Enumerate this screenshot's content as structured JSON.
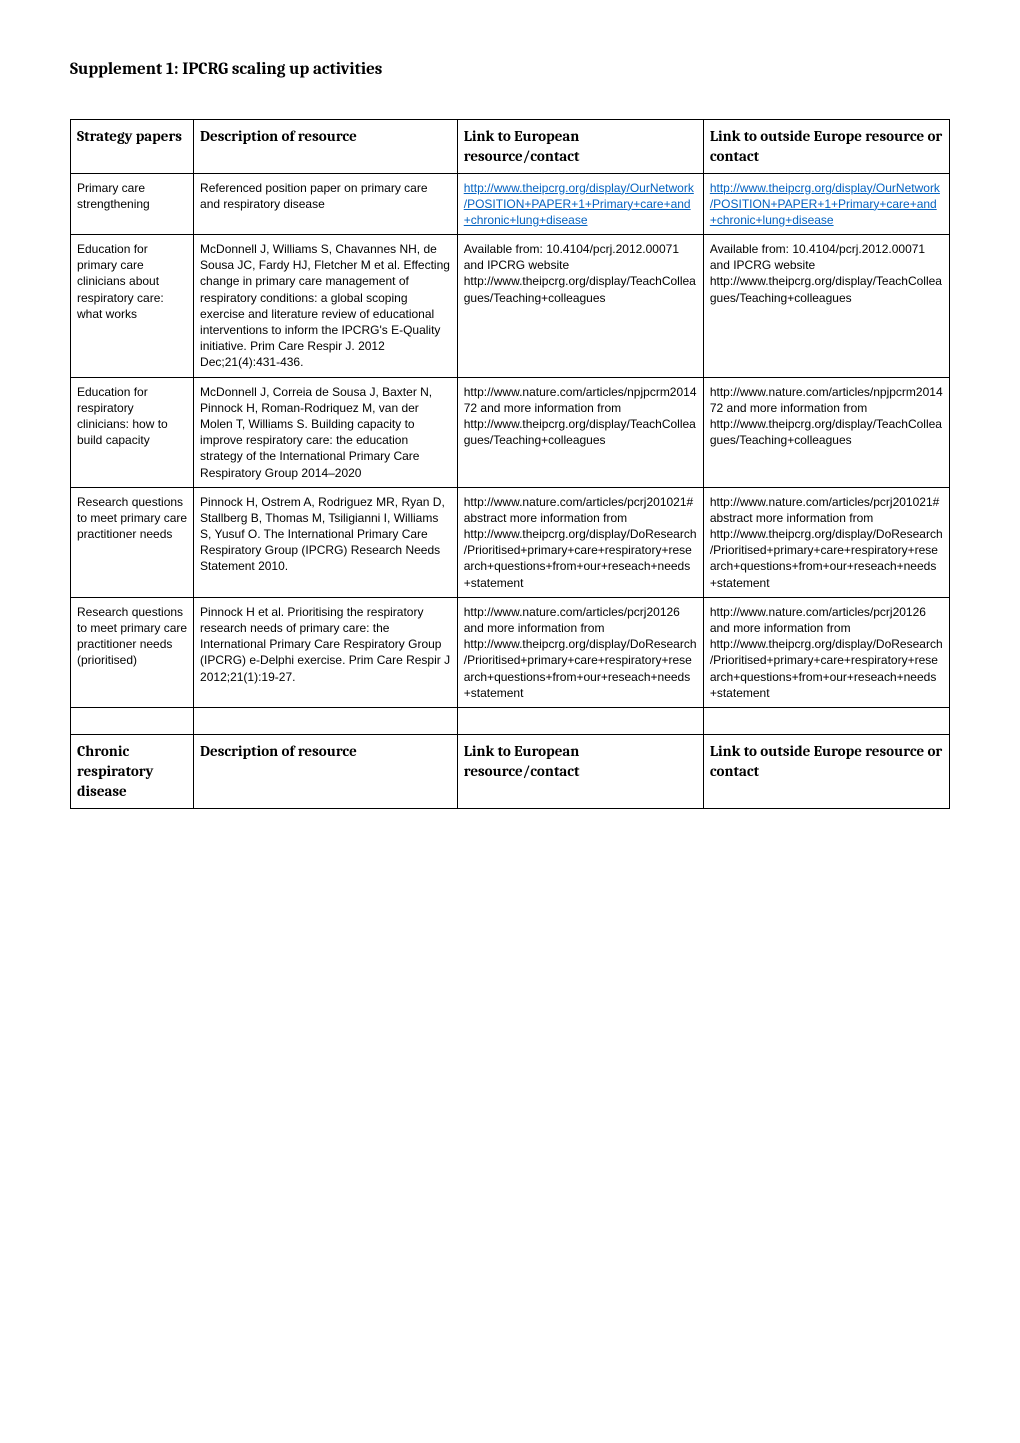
{
  "title": "Supplement 1: IPCRG scaling up activities",
  "table": {
    "headers": {
      "col1": "Strategy papers",
      "col2": "Description of resource",
      "col3": "Link to European resource/contact",
      "col4": "Link to outside Europe resource or contact"
    },
    "rows": [
      {
        "strategy": "Primary care strengthening",
        "description": "Referenced position paper on primary care and respiratory disease",
        "europe": "http://www.theipcrg.org/display/OurNetwork/POSITION+PAPER+1+Primary+care+and+chronic+lung+disease",
        "outside": "http://www.theipcrg.org/display/OurNetwork/POSITION+PAPER+1+Primary+care+and+chronic+lung+disease",
        "isLink": true
      },
      {
        "strategy": "Education for primary care clinicians about respiratory care: what works",
        "description": "McDonnell J, Williams S, Chavannes NH, de Sousa JC, Fardy HJ, Fletcher M et al. Effecting change in primary care management of respiratory conditions: a global scoping exercise and literature review of educational interventions to inform the IPCRG's E-Quality initiative. Prim Care Respir J. 2012 Dec;21(4):431-436.",
        "europe": "Available from: 10.4104/pcrj.2012.00071 and IPCRG website http://www.theipcrg.org/display/TeachColleagues/Teaching+colleagues",
        "outside": "Available from: 10.4104/pcrj.2012.00071 and IPCRG website http://www.theipcrg.org/display/TeachColleagues/Teaching+colleagues",
        "isLink": false
      },
      {
        "strategy": "Education for respiratory clinicians: how to build capacity",
        "description": "McDonnell J, Correia de Sousa J, Baxter N, Pinnock H, Roman-Rodriquez M, van der Molen T, Williams S.  Building capacity to improve respiratory care: the education strategy of the International Primary Care Respiratory Group 2014–2020",
        "europe": "http://www.nature.com/articles/npjpcrm201472 and more information from http://www.theipcrg.org/display/TeachColleagues/Teaching+colleagues",
        "outside": "http://www.nature.com/articles/npjpcrm201472 and more information from http://www.theipcrg.org/display/TeachColleagues/Teaching+colleagues",
        "isLink": false
      },
      {
        "strategy": "Research questions to meet primary care practitioner needs",
        "description": "Pinnock H, Ostrem A, Rodriguez MR, Ryan D, Stallberg B, Thomas M, Tsiligianni I, Williams S, Yusuf O.  The International Primary Care Respiratory Group (IPCRG) Research Needs Statement 2010.",
        "europe": "http://www.nature.com/articles/pcrj201021#abstract more information from http://www.theipcrg.org/display/DoResearch/Prioritised+primary+care+respiratory+research+questions+from+our+reseach+needs+statement",
        "outside": "http://www.nature.com/articles/pcrj201021#abstract more information from http://www.theipcrg.org/display/DoResearch/Prioritised+primary+care+respiratory+research+questions+from+our+reseach+needs+statement",
        "isLink": false
      },
      {
        "strategy": "Research questions to meet primary care practitioner needs (prioritised)",
        "description": "Pinnock H et al. Prioritising the respiratory research needs of primary care: the International Primary Care Respiratory Group (IPCRG) e-Delphi exercise. Prim Care Respir J 2012;21(1):19-27.",
        "europe": "http://www.nature.com/articles/pcrj20126    and more information from http://www.theipcrg.org/display/DoResearch/Prioritised+primary+care+respiratory+research+questions+from+our+reseach+needs+statement",
        "outside": "http://www.nature.com/articles/pcrj20126    and more information from http://www.theipcrg.org/display/DoResearch/Prioritised+primary+care+respiratory+research+questions+from+our+reseach+needs+statement",
        "isLink": false
      }
    ],
    "section2": {
      "col1": "Chronic respiratory disease",
      "col2": "Description of resource",
      "col3": "Link to European resource/contact",
      "col4": "Link to outside Europe resource or contact"
    }
  },
  "colors": {
    "link": "#0563c1",
    "text": "#000000",
    "border": "#000000",
    "background": "#ffffff"
  },
  "fonts": {
    "heading_family": "Cambria, Georgia, serif",
    "body_family": "Verdana, Geneva, sans-serif",
    "heading_size_pt": 13,
    "cell_size_pt": 9
  }
}
